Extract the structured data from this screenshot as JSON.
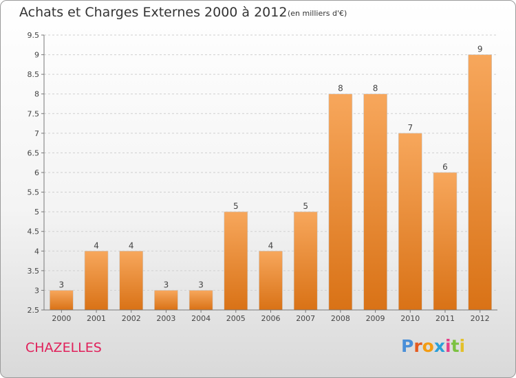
{
  "header": {
    "title": "Achats et Charges Externes 2000 à 2012",
    "unit": "(en milliers d'€)"
  },
  "footer": {
    "commune": "CHAZELLES",
    "logo": "Proxiti"
  },
  "colors": {
    "bar_light": "#f7a75c",
    "bar_dark": "#d97216",
    "commune": "#e0205a",
    "logo_letters": [
      "#4a8fd8",
      "#e55a1f",
      "#f39c12",
      "#2a9fd8",
      "#e53e8a",
      "#7cc242",
      "#e3c02a"
    ]
  },
  "chart_data": {
    "type": "bar",
    "title": "Achats et Charges Externes 2000 à 2012",
    "subtitle": "(en milliers d'€)",
    "categories": [
      "2000",
      "2001",
      "2002",
      "2003",
      "2004",
      "2005",
      "2006",
      "2007",
      "2008",
      "2009",
      "2010",
      "2011",
      "2012"
    ],
    "values": [
      3,
      4,
      4,
      3,
      3,
      5,
      4,
      5,
      8,
      8,
      7,
      6,
      9
    ],
    "ylim": [
      2.5,
      9.5
    ],
    "yticks": [
      "2.5",
      "3",
      "3.5",
      "4",
      "4.5",
      "5",
      "5.5",
      "6",
      "6.5",
      "7",
      "7.5",
      "8",
      "8.5",
      "9",
      "9.5"
    ],
    "grid": "horizontal-dashed",
    "legend": "none"
  }
}
